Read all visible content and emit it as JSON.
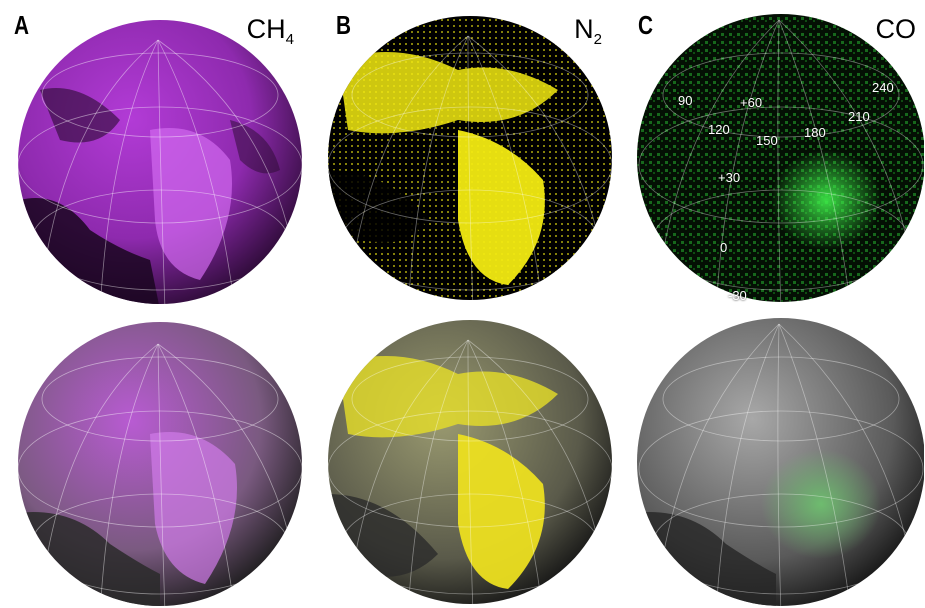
{
  "figure": {
    "panels": [
      {
        "letter": "A",
        "species_base": "CH",
        "species_sub": "4",
        "map_color": "#b23bd6",
        "blend_color": "#b85bd2"
      },
      {
        "letter": "B",
        "species_base": "N",
        "species_sub": "2",
        "map_color": "#f2ea12",
        "blend_color": "#e6df28"
      },
      {
        "letter": "C",
        "species_base": "CO",
        "species_sub": "",
        "map_color": "#2fd33a",
        "blend_color": "#6ec06f"
      }
    ],
    "grid_labels": {
      "longitudes": [
        "90",
        "120",
        "150",
        "180",
        "210",
        "240"
      ],
      "latitudes": [
        "+60",
        "+30",
        "0",
        "-30"
      ]
    }
  }
}
